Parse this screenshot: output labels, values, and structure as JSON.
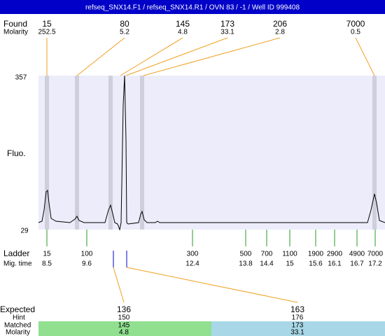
{
  "header": {
    "title": "refseq_SNX14.F1 / refseq_SNX14.R1 / OVN 83 / -1 / Well ID 999408"
  },
  "found": {
    "label": "Found",
    "molarity_label": "Molarity",
    "peaks": [
      {
        "size": "15",
        "molarity": "252.5"
      },
      {
        "size": "80",
        "molarity": "5.2"
      },
      {
        "size": "145",
        "molarity": "4.8"
      },
      {
        "size": "173",
        "molarity": "33.1"
      },
      {
        "size": "206",
        "molarity": "2.8"
      },
      {
        "size": "7000",
        "molarity": "0.5"
      }
    ]
  },
  "plot": {
    "y_label": "Fluo.",
    "y_max": "357",
    "y_min": "29"
  },
  "ladder": {
    "label": "Ladder",
    "mig_label": "Mig. time",
    "markers": [
      {
        "size": "15",
        "time": "8.5"
      },
      {
        "size": "100",
        "time": "9.6"
      },
      {
        "size": "300",
        "time": "12.4"
      },
      {
        "size": "500",
        "time": "13.8"
      },
      {
        "size": "700",
        "time": "14.4"
      },
      {
        "size": "1100",
        "time": "15"
      },
      {
        "size": "1900",
        "time": "15.6"
      },
      {
        "size": "2900",
        "time": "16.1"
      },
      {
        "size": "4900",
        "time": "16.7"
      },
      {
        "size": "7000",
        "time": "17.2"
      }
    ]
  },
  "expected": {
    "label": "Expected",
    "hint_label": "Hint",
    "matched_label": "Matched",
    "molarity_label": "Molarity",
    "items": [
      {
        "size": "136",
        "hint": "150",
        "matched": "145",
        "molarity": "4.8"
      },
      {
        "size": "163",
        "hint": "176",
        "matched": "173",
        "molarity": "33.1"
      }
    ]
  }
}
